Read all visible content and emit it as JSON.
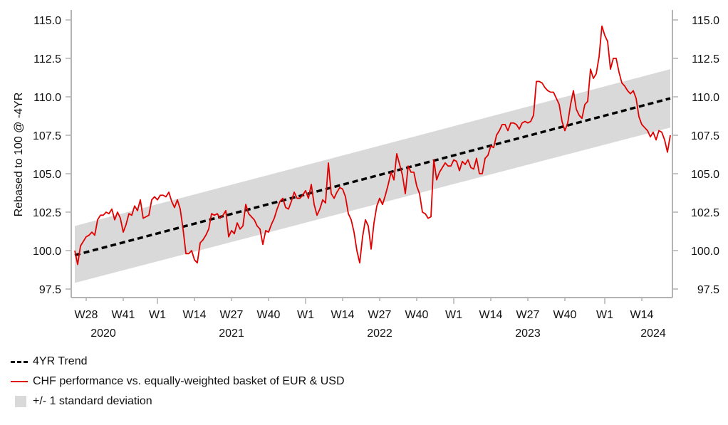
{
  "chart_data": {
    "type": "line",
    "title": "",
    "xlabel": "",
    "ylabel": "Rebased to 100 @ -4YR",
    "ylim": [
      97.5,
      115.0
    ],
    "y_ticks": [
      "97.5",
      "100.0",
      "102.5",
      "105.0",
      "107.5",
      "110.0",
      "112.5",
      "115.0"
    ],
    "y_axis_right": true,
    "grid": false,
    "legend_position": "bottom-left",
    "x_ticks": [
      {
        "label": "W28",
        "week_index": 4,
        "major": false
      },
      {
        "label": "W41",
        "week_index": 17,
        "major": false
      },
      {
        "label": "W1",
        "week_index": 29,
        "major": true
      },
      {
        "label": "W14",
        "week_index": 42,
        "major": false
      },
      {
        "label": "W27",
        "week_index": 55,
        "major": false
      },
      {
        "label": "W40",
        "week_index": 68,
        "major": false
      },
      {
        "label": "W1",
        "week_index": 81,
        "major": true
      },
      {
        "label": "W14",
        "week_index": 94,
        "major": false
      },
      {
        "label": "W27",
        "week_index": 107,
        "major": false
      },
      {
        "label": "W40",
        "week_index": 120,
        "major": false
      },
      {
        "label": "W1",
        "week_index": 133,
        "major": true
      },
      {
        "label": "W14",
        "week_index": 146,
        "major": false
      },
      {
        "label": "W27",
        "week_index": 159,
        "major": false
      },
      {
        "label": "W40",
        "week_index": 172,
        "major": false
      },
      {
        "label": "W1",
        "week_index": 186,
        "major": true
      },
      {
        "label": "W14",
        "week_index": 199,
        "major": false
      }
    ],
    "year_labels": [
      {
        "label": "2020",
        "week_index": 10
      },
      {
        "label": "2021",
        "week_index": 55
      },
      {
        "label": "2022",
        "week_index": 107
      },
      {
        "label": "2023",
        "week_index": 159
      },
      {
        "label": "2024",
        "week_index": 203
      }
    ],
    "x_range_weeks": [
      -1,
      210
    ],
    "series": [
      {
        "name": "CHF performance vs. equally-weighted basket of EUR & USD",
        "color": "#e00000",
        "start_week_index": 0,
        "values": [
          100.0,
          99.1,
          100.3,
          100.6,
          100.9,
          101.0,
          101.2,
          101.0,
          102.0,
          102.3,
          102.3,
          102.5,
          102.4,
          102.7,
          102.0,
          102.5,
          102.1,
          101.2,
          101.7,
          102.4,
          102.3,
          102.9,
          102.6,
          103.3,
          102.1,
          102.2,
          102.3,
          103.3,
          103.5,
          103.3,
          103.6,
          103.6,
          103.5,
          103.8,
          103.2,
          102.8,
          103.3,
          102.7,
          101.4,
          99.8,
          99.8,
          100.0,
          99.4,
          99.2,
          100.5,
          100.7,
          101.0,
          101.4,
          102.4,
          102.3,
          102.4,
          102.1,
          102.3,
          102.6,
          100.9,
          101.3,
          101.1,
          101.8,
          101.4,
          101.6,
          103.0,
          102.4,
          102.2,
          102.0,
          101.6,
          101.4,
          100.4,
          101.3,
          101.2,
          101.7,
          102.1,
          102.7,
          103.2,
          103.4,
          102.8,
          102.7,
          103.2,
          103.8,
          103.4,
          103.4,
          103.6,
          103.9,
          103.4,
          104.3,
          103.0,
          102.3,
          102.7,
          103.3,
          103.1,
          105.7,
          103.7,
          103.4,
          103.8,
          104.1,
          104.0,
          103.5,
          102.4,
          102.0,
          101.2,
          100.0,
          99.2,
          100.9,
          102.0,
          101.6,
          100.1,
          101.8,
          102.9,
          103.4,
          103.0,
          103.6,
          104.3,
          105.1,
          104.6,
          106.3,
          105.6,
          104.9,
          103.7,
          105.5,
          105.1,
          105.1,
          104.2,
          103.7,
          102.5,
          102.4,
          102.1,
          102.2,
          105.9,
          104.6,
          105.1,
          105.4,
          105.7,
          105.5,
          105.5,
          105.9,
          105.8,
          105.2,
          105.8,
          105.6,
          105.9,
          105.4,
          105.3,
          106.0,
          105.0,
          105.0,
          106.0,
          106.2,
          106.8,
          106.7,
          107.5,
          107.8,
          108.2,
          108.2,
          107.8,
          108.3,
          108.3,
          108.2,
          107.9,
          108.3,
          108.4,
          108.3,
          108.4,
          108.8,
          111.0,
          111.0,
          110.9,
          110.6,
          110.4,
          110.3,
          110.3,
          109.9,
          109.5,
          108.4,
          107.8,
          108.3,
          109.5,
          110.4,
          109.2,
          108.8,
          108.6,
          109.5,
          109.7,
          111.8,
          111.2,
          111.5,
          112.6,
          114.6,
          114.0,
          113.6,
          111.8,
          112.5,
          112.5,
          111.6,
          110.9,
          110.7,
          110.4,
          110.2,
          110.4,
          109.9,
          108.7,
          108.2,
          108.0,
          107.8,
          107.4,
          107.7,
          107.2,
          107.8,
          107.7,
          107.2,
          106.4,
          107.5
        ]
      },
      {
        "name": "4YR Trend",
        "color": "#000000",
        "style": "dashed",
        "start": {
          "week_index": 0,
          "value": 99.7
        },
        "end": {
          "week_index": 209,
          "value": 109.9
        }
      },
      {
        "name": "+/- 1 standard deviation",
        "color": "#d9d9d9",
        "type": "band",
        "start": {
          "week_index": 0,
          "lower": 97.9,
          "upper": 101.6
        },
        "end": {
          "week_index": 209,
          "lower": 108.0,
          "upper": 111.8
        }
      }
    ],
    "legend": [
      {
        "label": "4YR Trend",
        "swatch": "dashed-black"
      },
      {
        "label": "CHF performance vs. equally-weighted basket of EUR & USD",
        "swatch": "red-line"
      },
      {
        "label": "+/- 1 standard deviation",
        "swatch": "grey-box"
      }
    ]
  }
}
